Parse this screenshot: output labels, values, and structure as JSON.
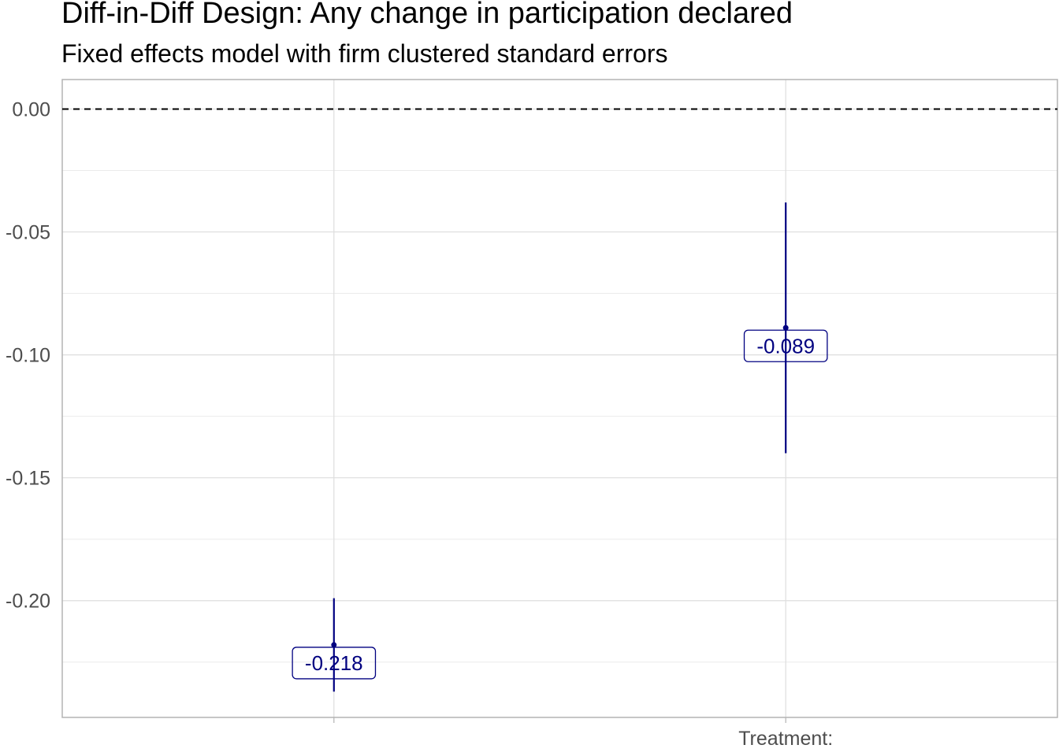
{
  "chart_data": {
    "type": "scatter",
    "title": "Diff-in-Diff Design: Any change in participation declared",
    "subtitle": "Fixed effects model with firm clustered standard errors",
    "xlabel": "",
    "ylabel": "",
    "categories": [
      "",
      "Treatment:"
    ],
    "ylim": [
      -0.2475,
      0.012
    ],
    "y_ticks": [
      0.0,
      -0.05,
      -0.1,
      -0.15,
      -0.2
    ],
    "y_tick_labels": [
      "0.00",
      "-0.05",
      "-0.10",
      "-0.15",
      "-0.20"
    ],
    "reference_line": {
      "y": 0,
      "style": "dashed"
    },
    "series": [
      {
        "name": "estimate",
        "color": "#000080",
        "points": [
          {
            "category": "",
            "estimate": -0.218,
            "ci_low": -0.237,
            "ci_high": -0.199,
            "label": "-0.218"
          },
          {
            "category": "Treatment:",
            "estimate": -0.089,
            "ci_low": -0.14,
            "ci_high": -0.038,
            "label": "-0.089"
          }
        ]
      }
    ],
    "grid": true,
    "legend": "none"
  }
}
